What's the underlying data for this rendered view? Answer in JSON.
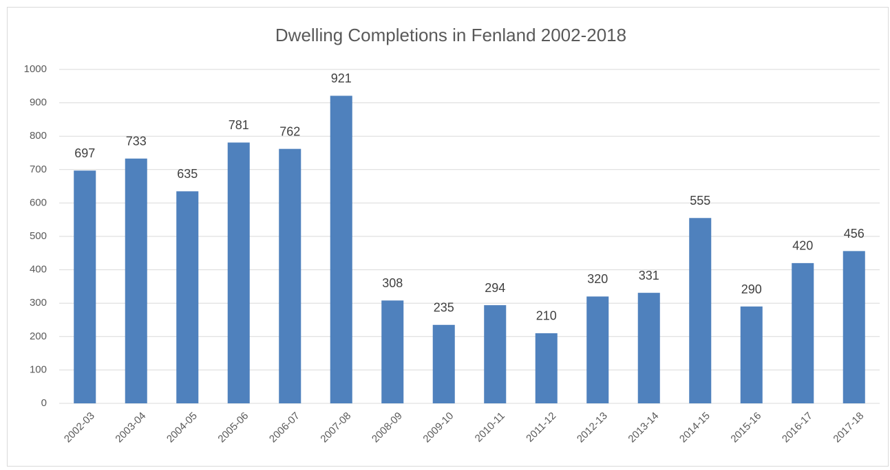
{
  "chart_data": {
    "type": "bar",
    "title": "Dwelling Completions in Fenland 2002-2018",
    "categories": [
      "2002-03",
      "2003-04",
      "2004-05",
      "2005-06",
      "2006-07",
      "2007-08",
      "2008-09",
      "2009-10",
      "2010-11",
      "2011-12",
      "2012-13",
      "2013-14",
      "2014-15",
      "2015-16",
      "2016-17",
      "2017-18"
    ],
    "values": [
      697,
      733,
      635,
      781,
      762,
      921,
      308,
      235,
      294,
      210,
      320,
      331,
      555,
      290,
      420,
      456
    ],
    "color": "#4f81bd",
    "ylim": [
      0,
      1000
    ],
    "yticks": [
      0,
      100,
      200,
      300,
      400,
      500,
      600,
      700,
      800,
      900,
      1000
    ],
    "grid": true
  }
}
